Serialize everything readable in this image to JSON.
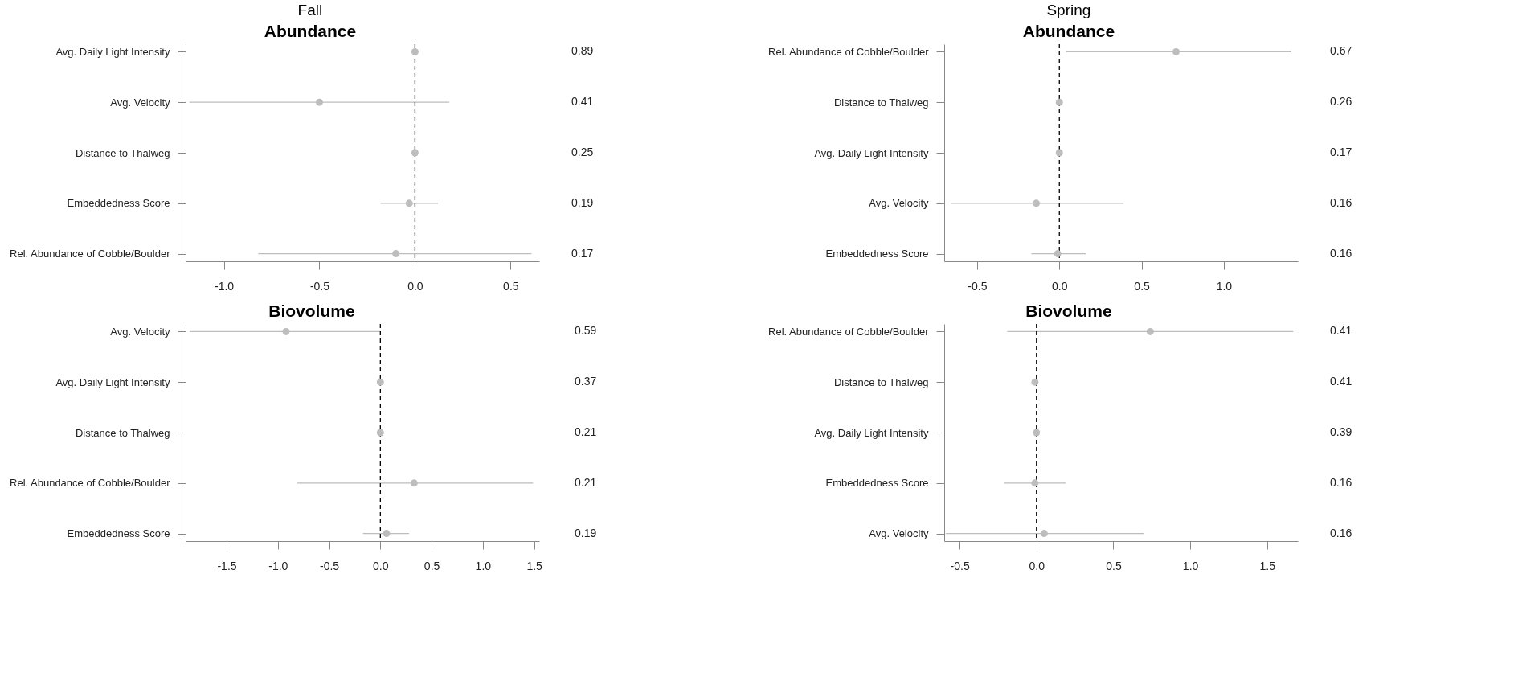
{
  "chart_data": [
    {
      "type": "scatter",
      "orientation": "horizontal",
      "title": "Fall",
      "subtitle": "Abundance",
      "categories": [
        "Avg. Daily Light Intensity",
        "Avg. Velocity",
        "Distance to Thalweg",
        "Embeddedness Score",
        "Rel. Abundance of Cobble/Boulder"
      ],
      "values": [
        0.0,
        -0.5,
        0.0,
        -0.03,
        -0.1
      ],
      "errors": [
        null,
        [
          -1.18,
          0.18
        ],
        null,
        [
          -0.18,
          0.12
        ],
        [
          -0.82,
          0.61
        ]
      ],
      "color": "#bdbdbd",
      "marker": "circle",
      "xlim": [
        -1.2,
        0.65
      ],
      "xticks": [
        {
          "value": -1,
          "label": "-1.0"
        },
        -0.5,
        {
          "value": 0,
          "label": "0.0"
        },
        0.5
      ],
      "grid": false,
      "ref_lines": [
        {
          "axis": "x",
          "value": 0,
          "color": "#000000",
          "line_style": "dashed"
        }
      ],
      "annotations": [
        "0.89",
        "0.41",
        "0.25",
        "0.19",
        "0.17"
      ]
    },
    {
      "type": "scatter",
      "orientation": "horizontal",
      "title": "Spring",
      "subtitle": "Abundance",
      "categories": [
        "Rel. Abundance of Cobble/Boulder",
        "Distance to Thalweg",
        "Avg. Daily Light Intensity",
        "Avg. Velocity",
        "Embeddedness Score"
      ],
      "values": [
        0.71,
        0.0,
        0.0,
        -0.14,
        -0.01
      ],
      "errors": [
        [
          0.04,
          1.41
        ],
        null,
        null,
        [
          -0.66,
          0.39
        ],
        [
          -0.17,
          0.16
        ]
      ],
      "color": "#bdbdbd",
      "marker": "circle",
      "xlim": [
        -0.7,
        1.45
      ],
      "xticks": [
        -0.5,
        {
          "value": 0,
          "label": "0.0"
        },
        0.5,
        {
          "value": 1,
          "label": "1.0"
        }
      ],
      "grid": false,
      "ref_lines": [
        {
          "axis": "x",
          "value": 0,
          "color": "#000000",
          "line_style": "dashed"
        }
      ],
      "annotations": [
        "0.67",
        "0.26",
        "0.17",
        "0.16",
        "0.16"
      ]
    },
    {
      "type": "scatter",
      "orientation": "horizontal",
      "title": "Biovolume",
      "categories": [
        "Avg. Velocity",
        "Avg. Daily Light Intensity",
        "Distance to Thalweg",
        "Rel. Abundance of Cobble/Boulder",
        "Embeddedness Score"
      ],
      "values": [
        -0.92,
        0.0,
        0.0,
        0.33,
        0.06
      ],
      "errors": [
        [
          -1.86,
          0.0
        ],
        null,
        null,
        [
          -0.81,
          1.49
        ],
        [
          -0.17,
          0.28
        ]
      ],
      "color": "#bdbdbd",
      "marker": "circle",
      "xlim": [
        -1.9,
        1.55
      ],
      "xticks": [
        -1.5,
        {
          "value": -1,
          "label": "-1.0"
        },
        -0.5,
        {
          "value": 0,
          "label": "0.0"
        },
        0.5,
        {
          "value": 1,
          "label": "1.0"
        },
        1.5
      ],
      "grid": false,
      "ref_lines": [
        {
          "axis": "x",
          "value": 0,
          "color": "#000000",
          "line_style": "dashed"
        }
      ],
      "annotations": [
        "0.59",
        "0.37",
        "0.21",
        "0.21",
        "0.19"
      ]
    },
    {
      "type": "scatter",
      "orientation": "horizontal",
      "title": "Biovolume",
      "categories": [
        "Rel. Abundance of Cobble/Boulder",
        "Distance to Thalweg",
        "Avg. Daily Light Intensity",
        "Embeddedness Score",
        "Avg. Velocity"
      ],
      "values": [
        0.74,
        -0.01,
        0.0,
        -0.01,
        0.05
      ],
      "errors": [
        [
          -0.19,
          1.67
        ],
        null,
        null,
        [
          -0.21,
          0.19
        ],
        [
          -0.59,
          0.7
        ]
      ],
      "color": "#bdbdbd",
      "marker": "circle",
      "xlim": [
        -0.6,
        1.7
      ],
      "xticks": [
        -0.5,
        {
          "value": 0,
          "label": "0.0"
        },
        0.5,
        {
          "value": 1,
          "label": "1.0"
        },
        1.5
      ],
      "grid": false,
      "ref_lines": [
        {
          "axis": "x",
          "value": 0,
          "color": "#000000",
          "line_style": "dashed"
        }
      ],
      "annotations": [
        "0.41",
        "0.41",
        "0.39",
        "0.16",
        "0.16"
      ]
    }
  ]
}
